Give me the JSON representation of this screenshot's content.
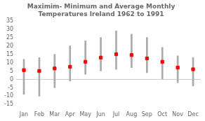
{
  "chart_data": {
    "type": "range",
    "title": "Maximim- Minimum and Average Monthly\nTemperatures Ireland 1962 to 1991",
    "categories": [
      "Jan",
      "Feb",
      "Mar",
      "Apr",
      "May",
      "Jun",
      "Jul",
      "Aug",
      "Sep",
      "Oct",
      "Nov",
      "Dec"
    ],
    "series": [
      {
        "type": "range",
        "color": "#aaaaaa",
        "high": [
          12,
          13,
          15,
          20,
          23,
          25,
          29,
          27,
          25,
          19,
          14,
          13
        ],
        "low": [
          -9,
          -10,
          -5,
          -1,
          3,
          5,
          6,
          7,
          4,
          0,
          -2,
          -4
        ]
      },
      {
        "type": "scatter",
        "marker": "square",
        "color": "#ff0000",
        "values": [
          5.5,
          5.0,
          6.5,
          7.5,
          10.5,
          13.0,
          15.0,
          14.5,
          12.5,
          10.5,
          7.0,
          6.0
        ]
      }
    ],
    "ylim": [
      -15,
      35
    ],
    "yticks": [
      -15,
      -10,
      -5,
      0,
      5,
      10,
      15,
      20,
      25,
      30,
      35
    ],
    "grid": false
  }
}
